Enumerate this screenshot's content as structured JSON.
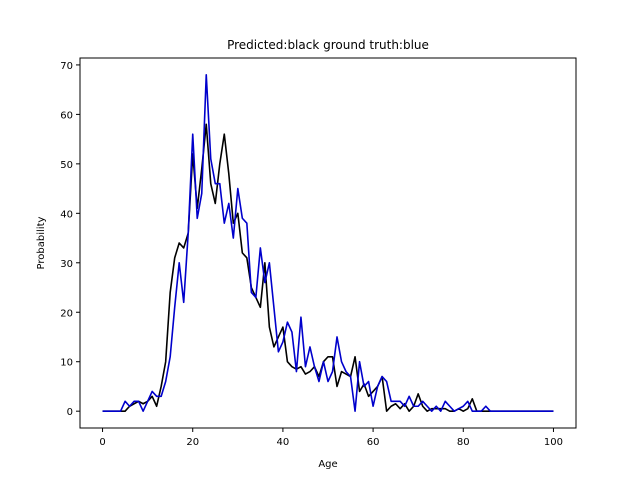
{
  "chart_data": {
    "type": "line",
    "title": "Predicted:black ground truth:blue",
    "xlabel": "Age",
    "ylabel": "Probability",
    "xlim": [
      -5,
      105
    ],
    "ylim": [
      -3.4,
      71.4
    ],
    "grid": false,
    "legend": "none",
    "x_ticks": [
      0,
      20,
      40,
      60,
      80,
      100
    ],
    "y_ticks": [
      0,
      10,
      20,
      30,
      40,
      50,
      60,
      70
    ],
    "x": [
      0,
      1,
      2,
      3,
      4,
      5,
      6,
      7,
      8,
      9,
      10,
      11,
      12,
      13,
      14,
      15,
      16,
      17,
      18,
      19,
      20,
      21,
      22,
      23,
      24,
      25,
      26,
      27,
      28,
      29,
      30,
      31,
      32,
      33,
      34,
      35,
      36,
      37,
      38,
      39,
      40,
      41,
      42,
      43,
      44,
      45,
      46,
      47,
      48,
      49,
      50,
      51,
      52,
      53,
      54,
      55,
      56,
      57,
      58,
      59,
      60,
      61,
      62,
      63,
      64,
      65,
      66,
      67,
      68,
      69,
      70,
      71,
      72,
      73,
      74,
      75,
      76,
      77,
      78,
      79,
      80,
      81,
      82,
      83,
      84,
      85,
      86,
      87,
      88,
      89,
      90,
      91,
      92,
      93,
      94,
      95,
      96,
      97,
      98,
      99,
      100
    ],
    "series": [
      {
        "color": "#000000",
        "values": [
          0,
          0,
          0,
          0,
          0,
          0,
          1,
          1.5,
          2,
          1.5,
          2,
          3,
          1,
          5,
          10,
          24,
          31,
          34,
          33,
          36,
          52,
          41,
          49,
          58,
          46,
          42,
          50,
          56,
          48,
          38,
          40,
          32,
          31,
          25,
          23,
          21,
          30,
          17,
          13,
          15,
          17,
          10,
          9,
          8.5,
          9,
          7.5,
          8,
          9,
          7,
          10,
          11,
          11,
          5,
          8,
          7.5,
          7,
          11,
          4,
          5.5,
          3,
          4,
          5,
          7,
          0,
          1,
          1.5,
          0.5,
          1.5,
          0,
          1,
          3.5,
          1,
          0,
          0.5,
          0.5,
          0.5,
          0.5,
          0,
          0,
          0.5,
          0,
          0.5,
          2.5,
          0,
          0,
          0,
          0,
          0,
          0,
          0,
          0,
          0,
          0,
          0,
          0,
          0,
          0,
          0,
          0,
          0,
          0
        ]
      },
      {
        "color": "#0000cc",
        "values": [
          0,
          0,
          0,
          0,
          0,
          2,
          1,
          2,
          2,
          0,
          2,
          4,
          3,
          3,
          6,
          11,
          21,
          30,
          22,
          36,
          56,
          39,
          44,
          68,
          51,
          46,
          46,
          38,
          42,
          35,
          45,
          39,
          38,
          24,
          23,
          33,
          26,
          30,
          21,
          12,
          14,
          18,
          16,
          8,
          19,
          9,
          13,
          9,
          6,
          10,
          6,
          8,
          15,
          10,
          8,
          7,
          0,
          10,
          5,
          6,
          1,
          5,
          7,
          6,
          2,
          2,
          2,
          1,
          3,
          1,
          1,
          2,
          1,
          0,
          1,
          0,
          2,
          1,
          0,
          0.5,
          1,
          2,
          0,
          0,
          0,
          1,
          0,
          0,
          0,
          0,
          0,
          0,
          0,
          0,
          0,
          0,
          0,
          0,
          0,
          0,
          0
        ]
      }
    ]
  }
}
